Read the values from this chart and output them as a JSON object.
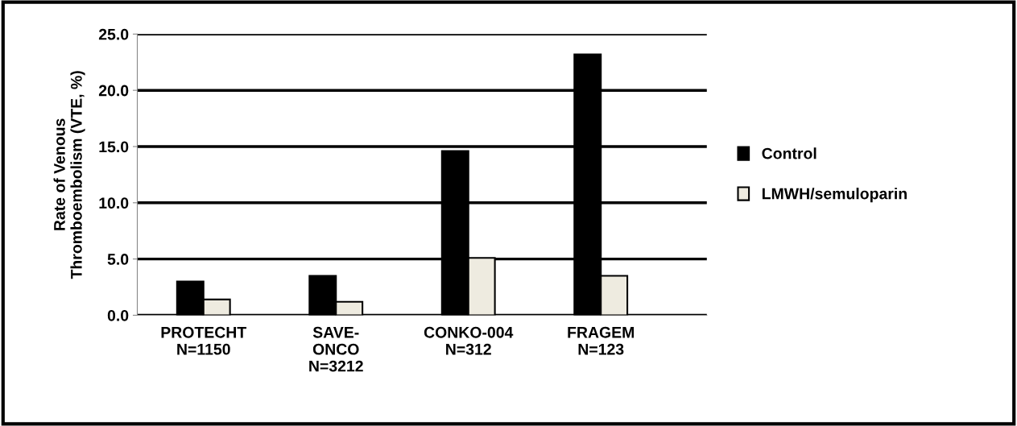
{
  "chart_data": {
    "type": "bar",
    "ylabel": "Rate of Venous\nThromboembolism (VTE, %)",
    "categories": [
      "PROTECHT\nN=1150",
      "SAVE-\nONCO\nN=3212",
      "CONKO-004\nN=312",
      "FRAGEM\nN=123"
    ],
    "series": [
      {
        "name": "Control",
        "color": "#000000",
        "values": [
          3.0,
          3.5,
          14.6,
          23.2
        ]
      },
      {
        "name": "LMWH/semuloparin",
        "color": "#eeebe0",
        "values": [
          1.4,
          1.2,
          5.1,
          3.5
        ]
      }
    ],
    "ylim": [
      0,
      25
    ],
    "yticks": [
      {
        "value": 0,
        "label": "0.0"
      },
      {
        "value": 5,
        "label": "5.0"
      },
      {
        "value": 10,
        "label": "10.0"
      },
      {
        "value": 15,
        "label": "15.0"
      },
      {
        "value": 20,
        "label": "20.0"
      },
      {
        "value": 25,
        "label": "25.0"
      }
    ],
    "grid": "y",
    "legend": "right"
  }
}
